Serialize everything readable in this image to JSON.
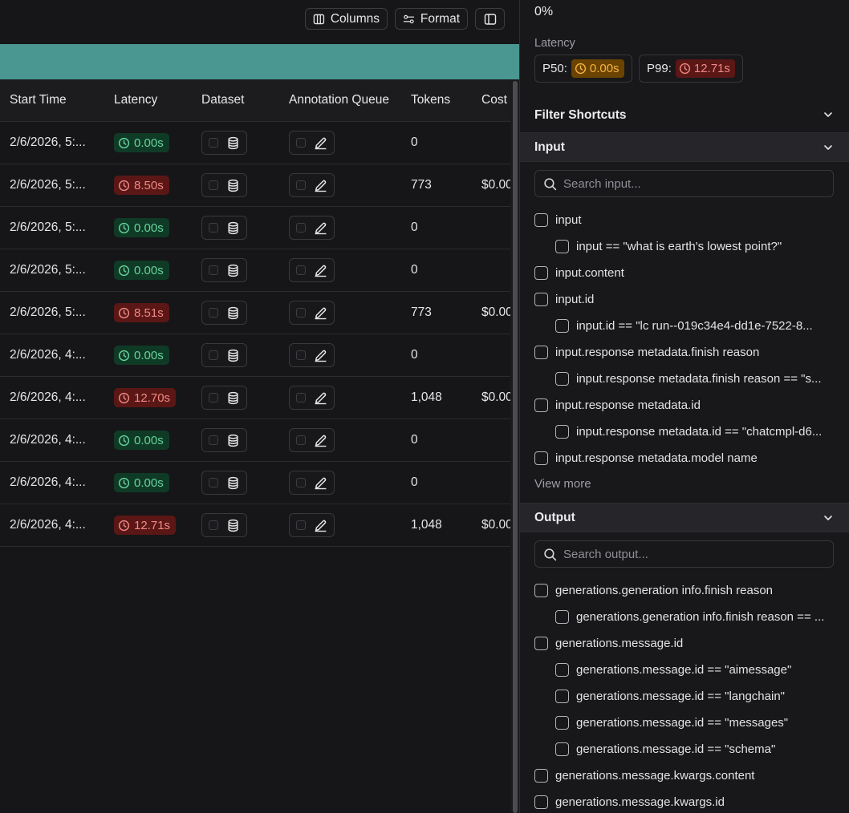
{
  "toolbar": {
    "columns_label": "Columns",
    "format_label": "Format"
  },
  "table": {
    "headers": [
      "Start Time",
      "Latency",
      "Dataset",
      "Annotation Queue",
      "Tokens",
      "Cost"
    ],
    "rows": [
      {
        "start": "2/6/2026, 5:...",
        "latency": "0.00s",
        "status": "ok",
        "tokens": "0",
        "cost": ""
      },
      {
        "start": "2/6/2026, 5:...",
        "latency": "8.50s",
        "status": "bad",
        "tokens": "773",
        "cost": "$0.00"
      },
      {
        "start": "2/6/2026, 5:...",
        "latency": "0.00s",
        "status": "ok",
        "tokens": "0",
        "cost": ""
      },
      {
        "start": "2/6/2026, 5:...",
        "latency": "0.00s",
        "status": "ok",
        "tokens": "0",
        "cost": ""
      },
      {
        "start": "2/6/2026, 5:...",
        "latency": "8.51s",
        "status": "bad",
        "tokens": "773",
        "cost": "$0.00"
      },
      {
        "start": "2/6/2026, 4:...",
        "latency": "0.00s",
        "status": "ok",
        "tokens": "0",
        "cost": ""
      },
      {
        "start": "2/6/2026, 4:...",
        "latency": "12.70s",
        "status": "bad",
        "tokens": "1,048",
        "cost": "$0.00"
      },
      {
        "start": "2/6/2026, 4:...",
        "latency": "0.00s",
        "status": "ok",
        "tokens": "0",
        "cost": ""
      },
      {
        "start": "2/6/2026, 4:...",
        "latency": "0.00s",
        "status": "ok",
        "tokens": "0",
        "cost": ""
      },
      {
        "start": "2/6/2026, 4:...",
        "latency": "12.71s",
        "status": "bad",
        "tokens": "1,048",
        "cost": "$0.00"
      }
    ]
  },
  "panel": {
    "percent": "0%",
    "latency_label": "Latency",
    "p50": {
      "label": "P50:",
      "value": "0.00s"
    },
    "p99": {
      "label": "P99:",
      "value": "12.71s"
    },
    "filter_shortcuts": "Filter Shortcuts",
    "input_section": "Input",
    "input_search_placeholder": "Search input...",
    "input_items": [
      {
        "label": "input",
        "level": 0
      },
      {
        "label": "input == \"what is earth's lowest point?\"",
        "level": 1
      },
      {
        "label": "input.content",
        "level": 0
      },
      {
        "label": "input.id",
        "level": 0
      },
      {
        "label": "input.id == \"lc run--019c34e4-dd1e-7522-8...",
        "level": 1
      },
      {
        "label": "input.response metadata.finish reason",
        "level": 0
      },
      {
        "label": "input.response metadata.finish reason == \"s...",
        "level": 1
      },
      {
        "label": "input.response metadata.id",
        "level": 0
      },
      {
        "label": "input.response metadata.id == \"chatcmpl-d6...",
        "level": 1
      },
      {
        "label": "input.response metadata.model name",
        "level": 0
      }
    ],
    "view_more": "View more",
    "output_section": "Output",
    "output_search_placeholder": "Search output...",
    "output_items": [
      {
        "label": "generations.generation info.finish reason",
        "level": 0
      },
      {
        "label": "generations.generation info.finish reason == ...",
        "level": 1
      },
      {
        "label": "generations.message.id",
        "level": 0
      },
      {
        "label": "generations.message.id == \"aimessage\"",
        "level": 1
      },
      {
        "label": "generations.message.id == \"langchain\"",
        "level": 1
      },
      {
        "label": "generations.message.id == \"messages\"",
        "level": 1
      },
      {
        "label": "generations.message.id == \"schema\"",
        "level": 1
      },
      {
        "label": "generations.message.kwargs.content",
        "level": 0
      },
      {
        "label": "generations.message.kwargs.id",
        "level": 0
      }
    ]
  },
  "colors": {
    "accent_teal": "#4a9690",
    "ok_text": "#69d39d",
    "bad_text": "#f08a86",
    "p50_text": "#f5b443"
  }
}
